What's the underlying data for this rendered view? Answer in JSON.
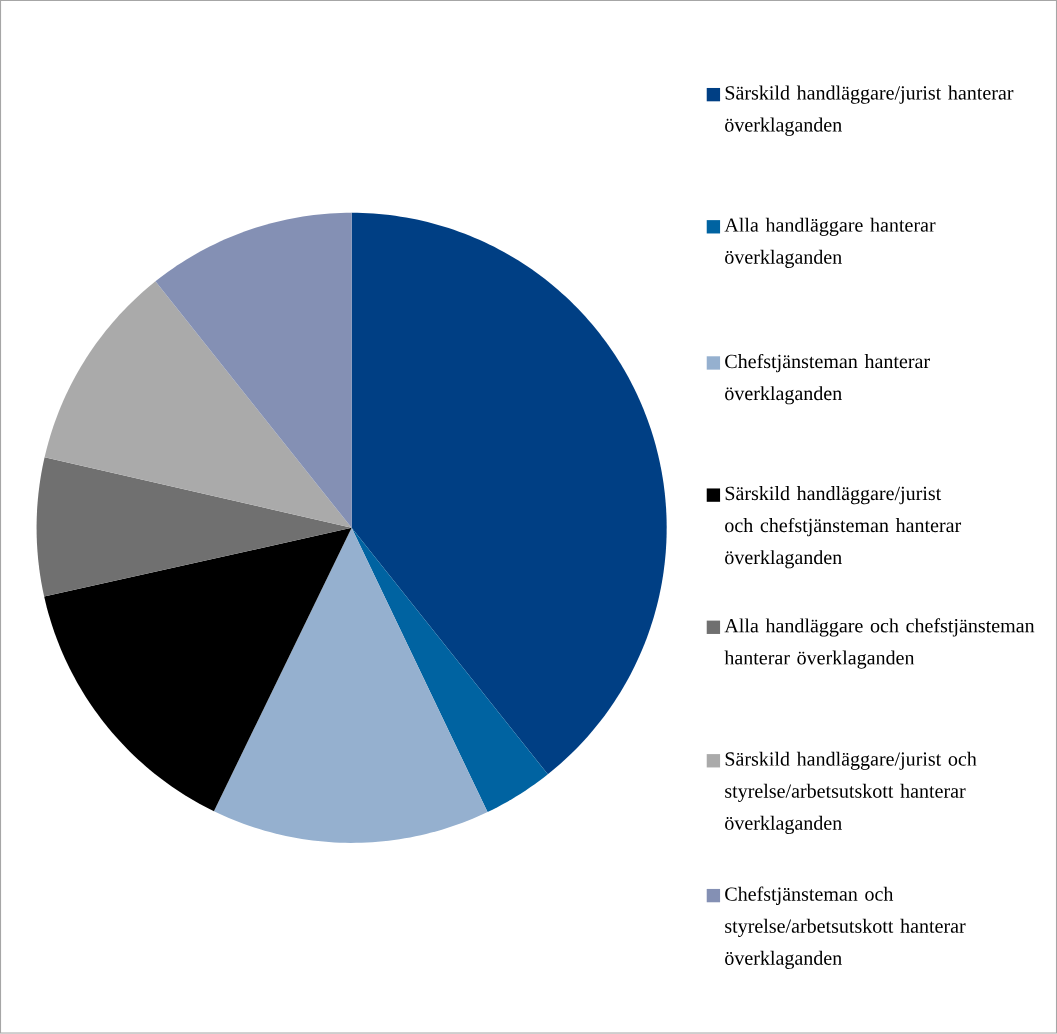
{
  "chart_data": {
    "type": "pie",
    "categories": [
      "Särskild handläggare/jurist hanterar överklaganden",
      "Alla handläggare hanterar överklaganden",
      "Chefstjänsteman hanterar överklaganden",
      "Särskild handläggare/jurist och chefstjänsteman hanterar överklaganden",
      "Alla handläggare och chefstjänsteman hanterar överklaganden",
      "Särskild handläggare/jurist och styrelse/arbetsutskott hanterar överklaganden",
      "Chefstjänsteman och styrelse/arbetsutskott hanterar överklaganden"
    ],
    "values": [
      39.3,
      3.6,
      14.3,
      14.3,
      7.1,
      10.7,
      10.7
    ],
    "colors": [
      "#003f84",
      "#0063a1",
      "#95b0cf",
      "#000000",
      "#707070",
      "#aaaaaa",
      "#8490b4"
    ],
    "legend": "right"
  }
}
